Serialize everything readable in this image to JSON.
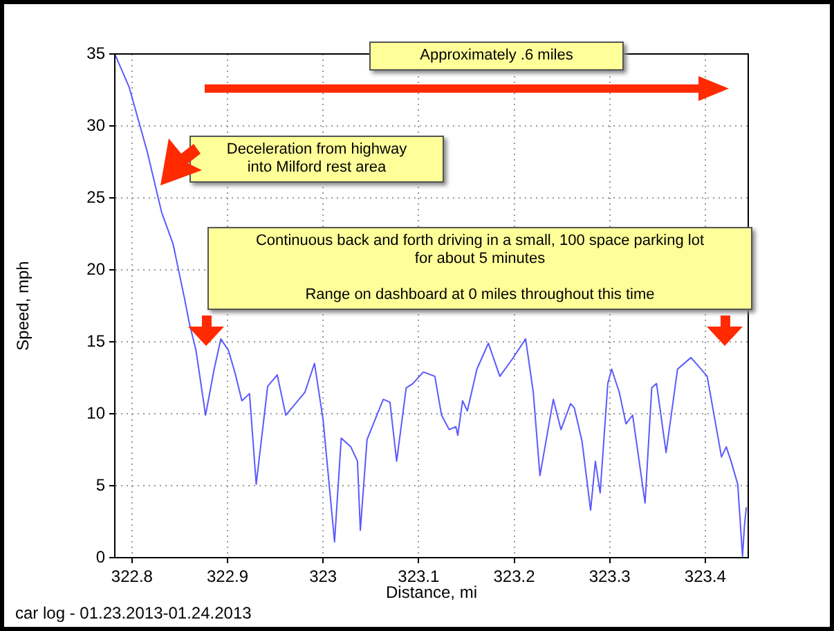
{
  "chart_data": {
    "type": "line",
    "xlabel": "Distance, mi",
    "ylabel": "Speed, mph",
    "xlim": [
      322.782,
      323.445
    ],
    "xticks": [
      322.8,
      322.9,
      323,
      323.1,
      323.2,
      323.3,
      323.4
    ],
    "ylim": [
      0,
      35
    ],
    "yticks": [
      0,
      5,
      10,
      15,
      20,
      25,
      30,
      35
    ],
    "grid": true,
    "legend": false,
    "marker": "none",
    "line_style": "solid",
    "annotations": [
      "Approximately .6 miles",
      "Deceleration from highway\ninto Milford rest area",
      "Continuous back and forth driving in a small, 100 space parking lot\nfor about 5 minutes\n\nRange on dashboard at 0 miles throughout this time",
      "car log - 01.23.2013-01.24.2013"
    ],
    "series": [
      {
        "color": "#5a5aff",
        "x": [
          322.782,
          322.797,
          322.816,
          322.831,
          322.843,
          322.855,
          322.86,
          322.867,
          322.877,
          322.886,
          322.893,
          322.901,
          322.908,
          322.915,
          322.923,
          322.93,
          322.942,
          322.952,
          322.961,
          322.981,
          322.991,
          323,
          323.012,
          323.019,
          323.029,
          323.036,
          323.039,
          323.046,
          323.063,
          323.07,
          323.077,
          323.087,
          323.094,
          323.105,
          323.117,
          323.124,
          323.132,
          323.139,
          323.141,
          323.146,
          323.151,
          323.161,
          323.173,
          323.185,
          323.198,
          323.212,
          323.22,
          323.227,
          323.241,
          323.249,
          323.259,
          323.263,
          323.271,
          323.28,
          323.285,
          323.29,
          323.298,
          323.302,
          323.31,
          323.317,
          323.324,
          323.337,
          323.344,
          323.349,
          323.359,
          323.371,
          323.385,
          323.393,
          323.402,
          323.417,
          323.422,
          323.427,
          323.434,
          323.439,
          323.441,
          323.443
        ],
        "values": [
          35,
          32.7,
          28.2,
          24,
          21.8,
          18,
          16.3,
          14.4,
          9.9,
          13.1,
          15.2,
          14.4,
          12.8,
          10.9,
          11.4,
          5.1,
          11.9,
          12.7,
          9.9,
          11.5,
          13.5,
          9.6,
          1.1,
          8.3,
          7.7,
          6.7,
          1.9,
          8.2,
          11,
          10.8,
          6.7,
          11.8,
          12.1,
          12.9,
          12.6,
          9.9,
          8.9,
          9.1,
          8.5,
          10.9,
          10.2,
          13.1,
          14.9,
          12.6,
          13.8,
          15.2,
          11.5,
          5.7,
          11,
          8.9,
          10.7,
          10.4,
          8.1,
          3.3,
          6.7,
          4.5,
          12.1,
          13.1,
          11.5,
          9.3,
          9.9,
          3.8,
          11.8,
          12.1,
          7.3,
          13.1,
          13.9,
          13.3,
          12.6,
          7,
          7.7,
          6.7,
          5.1,
          0.1,
          2.2,
          3.5
        ]
      }
    ]
  }
}
